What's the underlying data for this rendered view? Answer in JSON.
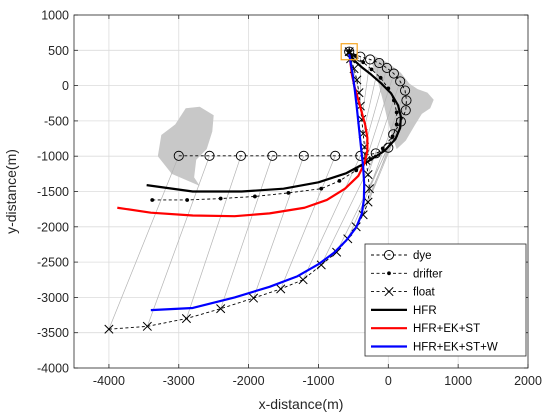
{
  "chart_data": {
    "type": "line",
    "xlabel": "x-distance(m)",
    "ylabel": "y-distance(m)",
    "xlim": [
      -4500,
      2000
    ],
    "ylim": [
      -4000,
      1000
    ],
    "xticks": [
      -4000,
      -3000,
      -2000,
      -1000,
      0,
      1000,
      2000
    ],
    "yticks": [
      -4000,
      -3500,
      -3000,
      -2500,
      -2000,
      -1500,
      -1000,
      -500,
      0,
      500,
      1000
    ],
    "xtick_labels": [
      "-4000",
      "-3000",
      "-2000",
      "-1000",
      "0",
      "1000",
      "2000"
    ],
    "ytick_labels": [
      "-4000",
      "-3500",
      "-3000",
      "-2500",
      "-2000",
      "-1500",
      "-1000",
      "-500",
      "0",
      "500",
      "1000"
    ],
    "grid": true,
    "legend_position": "bottom-right",
    "release_point": {
      "x": -560,
      "y": 480
    },
    "series": [
      {
        "name": "dye",
        "style": "dashed",
        "marker": "circle",
        "color": "#000000",
        "x": [
          -3000,
          -2560,
          -2110,
          -1660,
          -1210,
          -760,
          -400,
          -180,
          0,
          70,
          180,
          250,
          260,
          240,
          170,
          80,
          -20,
          -130,
          -260,
          -400,
          -560
        ],
        "y": [
          -995,
          -995,
          -995,
          -995,
          -995,
          -995,
          -995,
          -960,
          -880,
          -690,
          -510,
          -350,
          -210,
          -70,
          60,
          170,
          250,
          320,
          370,
          410,
          480
        ]
      },
      {
        "name": "drifter",
        "style": "dashed",
        "marker": "dot",
        "color": "#000000",
        "x": [
          -3380,
          -2880,
          -2400,
          -1910,
          -1430,
          -960,
          -700,
          -460,
          -250,
          -80,
          60,
          120,
          120,
          80,
          0,
          -110,
          -240,
          -360,
          -470,
          -560
        ],
        "y": [
          -1620,
          -1620,
          -1600,
          -1570,
          -1520,
          -1460,
          -1350,
          -1200,
          -1040,
          -890,
          -720,
          -550,
          -380,
          -210,
          -40,
          110,
          230,
          330,
          420,
          480
        ]
      },
      {
        "name": "float",
        "style": "dashed",
        "marker": "x",
        "color": "#000000",
        "x": [
          -4000,
          -3450,
          -2890,
          -2400,
          -1930,
          -1540,
          -1220,
          -960,
          -740,
          -580,
          -460,
          -360,
          -290,
          -270,
          -290,
          -320,
          -340,
          -360,
          -380,
          -400,
          -420,
          -450,
          -490,
          -540,
          -560
        ],
        "y": [
          -3450,
          -3410,
          -3300,
          -3160,
          -3010,
          -2880,
          -2750,
          -2540,
          -2360,
          -2170,
          -2000,
          -1830,
          -1650,
          -1460,
          -1260,
          -1060,
          -870,
          -680,
          -480,
          -290,
          -100,
          80,
          240,
          380,
          480
        ]
      },
      {
        "name": "HFR",
        "style": "solid",
        "color": "#000000",
        "x": [
          -3460,
          -2800,
          -2100,
          -1500,
          -1000,
          -600,
          -300,
          -50,
          100,
          170,
          180,
          140,
          40,
          -100,
          -250,
          -380,
          -470,
          -520,
          -540
        ],
        "y": [
          -1410,
          -1500,
          -1500,
          -1460,
          -1370,
          -1240,
          -1080,
          -920,
          -760,
          -600,
          -440,
          -280,
          -110,
          30,
          160,
          260,
          340,
          400,
          440
        ]
      },
      {
        "name": "HFR+EK+ST",
        "style": "solid",
        "color": "#ff0000",
        "x": [
          -3880,
          -3400,
          -2800,
          -2200,
          -1700,
          -1200,
          -880,
          -620,
          -430,
          -340,
          -300,
          -300,
          -330,
          -380,
          -430,
          -480,
          -520,
          -545
        ],
        "y": [
          -1730,
          -1800,
          -1840,
          -1850,
          -1810,
          -1730,
          -1620,
          -1460,
          -1280,
          -1100,
          -920,
          -740,
          -560,
          -380,
          -200,
          -30,
          150,
          350
        ]
      },
      {
        "name": "HFR+EK+ST+W",
        "style": "solid",
        "color": "#0000ff",
        "x": [
          -3400,
          -2800,
          -2200,
          -1700,
          -1300,
          -1000,
          -780,
          -600,
          -460,
          -380,
          -350,
          -345,
          -360,
          -390,
          -420,
          -450,
          -480,
          -510,
          -540,
          -560
        ],
        "y": [
          -3180,
          -3150,
          -3000,
          -2850,
          -2700,
          -2530,
          -2370,
          -2190,
          -2010,
          -1820,
          -1620,
          -1400,
          -1150,
          -880,
          -600,
          -320,
          -60,
          160,
          330,
          450
        ]
      }
    ]
  }
}
